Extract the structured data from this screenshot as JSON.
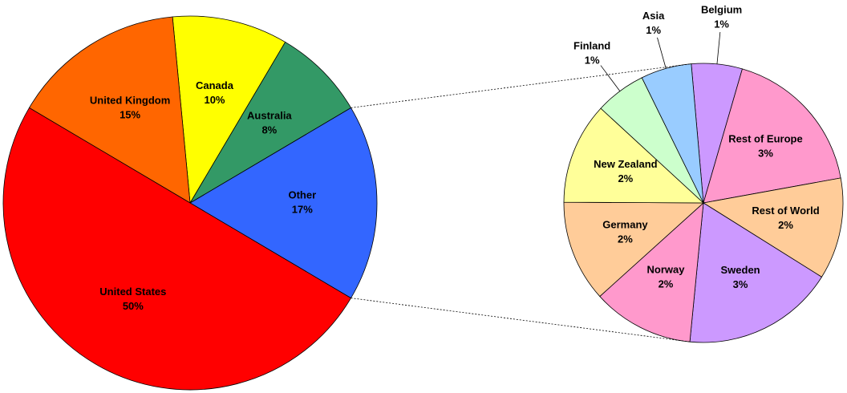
{
  "chart_data": [
    {
      "type": "pie",
      "categories": [
        "Other",
        "Australia",
        "Canada",
        "United Kingdom",
        "United States"
      ],
      "values": [
        17,
        8,
        10,
        15,
        50
      ],
      "value_labels": [
        "17%",
        "8%",
        "10%",
        "15%",
        "50%"
      ],
      "colors": [
        "#3366ff",
        "#339966",
        "#ffff00",
        "#ff6600",
        "#ff0000"
      ]
    },
    {
      "type": "pie",
      "categories": [
        "Belgium",
        "Rest of Europe",
        "Rest of World",
        "Sweden",
        "Norway",
        "Germany",
        "New Zealand",
        "Finland",
        "Asia"
      ],
      "values": [
        1,
        3,
        2,
        3,
        2,
        2,
        2,
        1,
        1
      ],
      "value_labels": [
        "1%",
        "3%",
        "2%",
        "3%",
        "2%",
        "2%",
        "2%",
        "1%",
        "1%"
      ],
      "colors": [
        "#cc99ff",
        "#ff99cc",
        "#ffcc99",
        "#cc99ff",
        "#ff99cc",
        "#ffcc99",
        "#ffff99",
        "#ccffcc",
        "#99ccff"
      ]
    }
  ]
}
